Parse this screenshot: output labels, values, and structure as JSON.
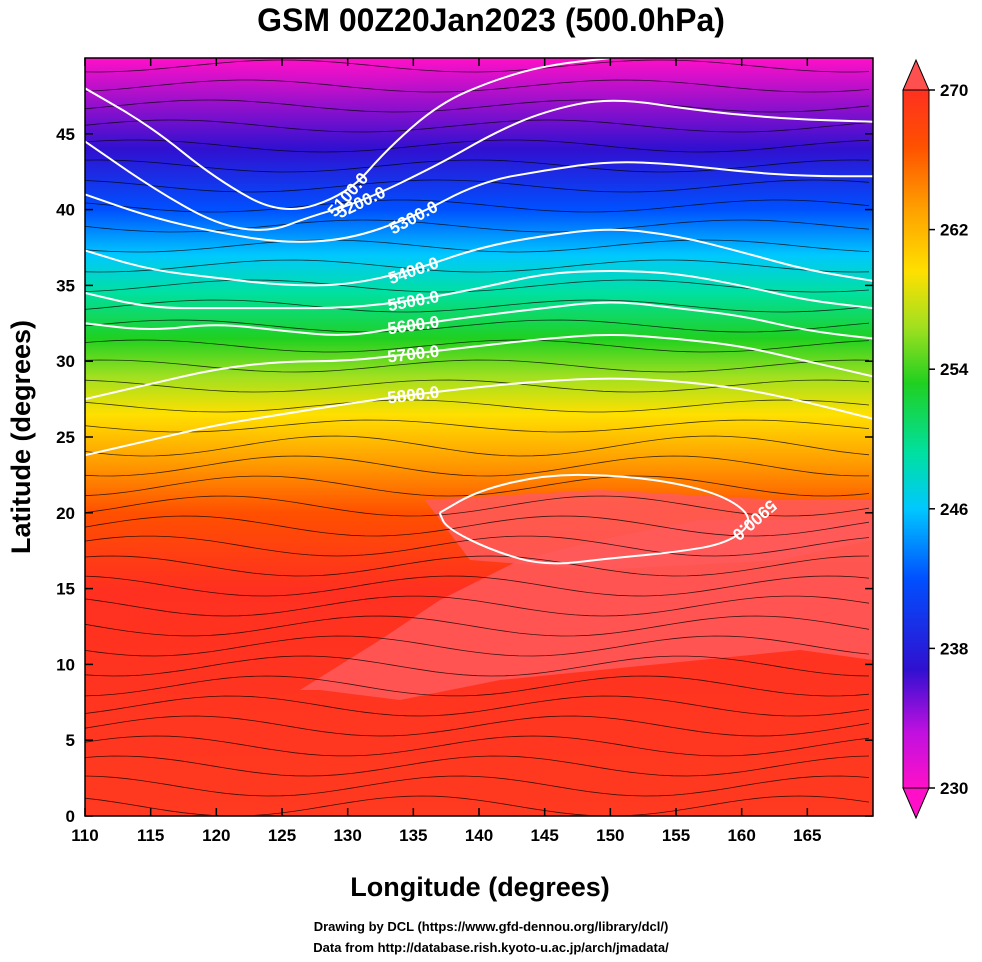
{
  "title": "GSM 00Z20Jan2023 (500.0hPa)",
  "chart_data": {
    "type": "heatmap",
    "title": "GSM 00Z20Jan2023 (500.0hPa)",
    "xlabel": "Longitude (degrees)",
    "ylabel": "Latitude  (degrees)",
    "xlim": [
      110,
      170
    ],
    "ylim": [
      0,
      50
    ],
    "x_ticks": [
      110,
      115,
      120,
      125,
      130,
      135,
      140,
      145,
      150,
      155,
      160,
      165
    ],
    "y_ticks": [
      0,
      5,
      10,
      15,
      20,
      25,
      30,
      35,
      40,
      45
    ],
    "colorbar": {
      "ticks": [
        230,
        238,
        246,
        254,
        262,
        270
      ],
      "range": [
        230,
        270
      ],
      "colors": [
        "#ff10c8",
        "#c010e0",
        "#3010d0",
        "#0050ff",
        "#00c8ff",
        "#00e0a0",
        "#20d020",
        "#a0e020",
        "#ffe000",
        "#ffa000",
        "#ff5000",
        "#ff3020"
      ]
    },
    "contours": {
      "field": "geopotential height",
      "color": "#ffffff",
      "levels": [
        {
          "value": 5100,
          "label": "5100.0",
          "path": [
            [
              110,
              48
            ],
            [
              115,
              45.5
            ],
            [
              120,
              42
            ],
            [
              125,
              39.6
            ],
            [
              130,
              41
            ],
            [
              133,
              44
            ],
            [
              137,
              47
            ],
            [
              141,
              48.5
            ],
            [
              145,
              49.5
            ],
            [
              150,
              50
            ]
          ]
        },
        {
          "value": 5200,
          "label": "5200.0",
          "path": [
            [
              110,
              44.5
            ],
            [
              115,
              41.5
            ],
            [
              120,
              39
            ],
            [
              124,
              38.5
            ],
            [
              127,
              39.5
            ],
            [
              131,
              40.5
            ],
            [
              137,
              43
            ],
            [
              141,
              45
            ],
            [
              145,
              46.5
            ],
            [
              150,
              47.4
            ],
            [
              157,
              46.5
            ],
            [
              163,
              46
            ],
            [
              170,
              45.8
            ]
          ]
        },
        {
          "value": 5300,
          "label": "5300.0",
          "path": [
            [
              110,
              41
            ],
            [
              115,
              39.5
            ],
            [
              120,
              38.5
            ],
            [
              125,
              37.8
            ],
            [
              130,
              38
            ],
            [
              135,
              39.5
            ],
            [
              140,
              41.8
            ],
            [
              145,
              42.6
            ],
            [
              150,
              43.2
            ],
            [
              155,
              43
            ],
            [
              160,
              42.5
            ],
            [
              165,
              42.2
            ],
            [
              170,
              42.2
            ]
          ]
        },
        {
          "value": 5400,
          "label": "5400.0",
          "path": [
            [
              110,
              37.3
            ],
            [
              115,
              36
            ],
            [
              120,
              35.5
            ],
            [
              125,
              35
            ],
            [
              130,
              35
            ],
            [
              135,
              36
            ],
            [
              140,
              37.5
            ],
            [
              145,
              38.3
            ],
            [
              150,
              38.8
            ],
            [
              155,
              38.3
            ],
            [
              160,
              37.2
            ],
            [
              165,
              36
            ],
            [
              170,
              35.3
            ]
          ]
        },
        {
          "value": 5500,
          "label": "5500.0",
          "path": [
            [
              110,
              34.5
            ],
            [
              115,
              33.5
            ],
            [
              120,
              33.5
            ],
            [
              125,
              33.5
            ],
            [
              130,
              33.5
            ],
            [
              135,
              34
            ],
            [
              140,
              34.8
            ],
            [
              145,
              35.8
            ],
            [
              150,
              36
            ],
            [
              155,
              35.8
            ],
            [
              160,
              35
            ],
            [
              165,
              34
            ],
            [
              170,
              33.5
            ]
          ]
        },
        {
          "value": 5600,
          "label": "5600.0",
          "path": [
            [
              110,
              32.5
            ],
            [
              115,
              32
            ],
            [
              120,
              32.5
            ],
            [
              125,
              32
            ],
            [
              130,
              31.6
            ],
            [
              135,
              32.4
            ],
            [
              140,
              33
            ],
            [
              145,
              33.5
            ],
            [
              150,
              34
            ],
            [
              155,
              33.5
            ],
            [
              160,
              33
            ],
            [
              165,
              32
            ],
            [
              170,
              31.5
            ]
          ]
        },
        {
          "value": 5700,
          "label": "5700.0",
          "path": [
            [
              110,
              27.5
            ],
            [
              115,
              28.5
            ],
            [
              120,
              29.5
            ],
            [
              125,
              30
            ],
            [
              130,
              30
            ],
            [
              135,
              30.5
            ],
            [
              140,
              31
            ],
            [
              145,
              31.5
            ],
            [
              150,
              31.8
            ],
            [
              155,
              31.5
            ],
            [
              160,
              31
            ],
            [
              165,
              30
            ],
            [
              170,
              29
            ]
          ]
        },
        {
          "value": 5800,
          "label": "5800.0",
          "path": [
            [
              110,
              23.8
            ],
            [
              115,
              24.8
            ],
            [
              120,
              25.8
            ],
            [
              125,
              26.5
            ],
            [
              130,
              27.2
            ],
            [
              135,
              27.8
            ],
            [
              140,
              28.3
            ],
            [
              145,
              28.7
            ],
            [
              150,
              28.9
            ],
            [
              155,
              28.7
            ],
            [
              160,
              28.2
            ],
            [
              165,
              27.3
            ],
            [
              170,
              26.2
            ]
          ]
        },
        {
          "value": 5900,
          "label": "5900.0",
          "path": [
            [
              137,
              20
            ],
            [
              140,
              21.5
            ],
            [
              145,
              22.5
            ],
            [
              150,
              22.5
            ],
            [
              155,
              22
            ],
            [
              159,
              21
            ],
            [
              161,
              19.5
            ],
            [
              159,
              18
            ],
            [
              155,
              17.4
            ],
            [
              150,
              17
            ],
            [
              145,
              16.5
            ],
            [
              141,
              17.5
            ],
            [
              137.5,
              19
            ],
            [
              137,
              20
            ]
          ]
        }
      ]
    }
  },
  "credits": {
    "line1": "Drawing by DCL (https://www.gfd-dennou.org/library/dcl/)",
    "line2": "Data from http://database.rish.kyoto-u.ac.jp/arch/jmadata/"
  }
}
